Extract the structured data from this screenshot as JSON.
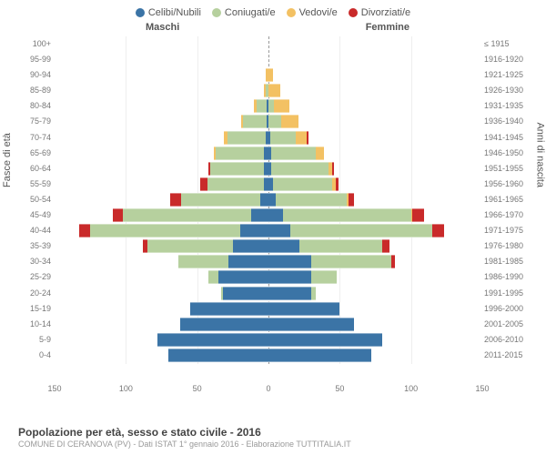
{
  "title": "Popolazione per età, sesso e stato civile - 2016",
  "subtitle": "COMUNE DI CERANOVA (PV) - Dati ISTAT 1° gennaio 2016 - Elaborazione TUTTITALIA.IT",
  "left_axis_label": "Fasce di età",
  "right_axis_label": "Anni di nascita",
  "header_left": "Maschi",
  "header_right": "Femmine",
  "legend": [
    {
      "label": "Celibi/Nubili",
      "color": "#3b74a6"
    },
    {
      "label": "Coniugati/e",
      "color": "#b6d09e"
    },
    {
      "label": "Vedovi/e",
      "color": "#f3c163"
    },
    {
      "label": "Divorziati/e",
      "color": "#c92a2a"
    }
  ],
  "colors": {
    "single": "#3b74a6",
    "married": "#b6d09e",
    "widowed": "#f3c163",
    "divorced": "#c92a2a",
    "grid": "#eee",
    "center": "#999"
  },
  "xmax": 150,
  "xticks": [
    150,
    100,
    50,
    0,
    50,
    100,
    150
  ],
  "age_bands": [
    {
      "age": "100+",
      "year": "≤ 1915",
      "m": [
        0,
        0,
        0,
        0
      ],
      "f": [
        0,
        0,
        0,
        0
      ]
    },
    {
      "age": "95-99",
      "year": "1916-1920",
      "m": [
        0,
        0,
        0,
        0
      ],
      "f": [
        0,
        0,
        0,
        0
      ]
    },
    {
      "age": "90-94",
      "year": "1921-1925",
      "m": [
        0,
        0,
        2,
        0
      ],
      "f": [
        0,
        0,
        3,
        0
      ]
    },
    {
      "age": "85-89",
      "year": "1926-1930",
      "m": [
        0,
        2,
        1,
        0
      ],
      "f": [
        0,
        0,
        8,
        0
      ]
    },
    {
      "age": "80-84",
      "year": "1931-1935",
      "m": [
        1,
        7,
        2,
        0
      ],
      "f": [
        0,
        4,
        11,
        0
      ]
    },
    {
      "age": "75-79",
      "year": "1936-1940",
      "m": [
        1,
        17,
        1,
        0
      ],
      "f": [
        0,
        9,
        12,
        0
      ]
    },
    {
      "age": "70-74",
      "year": "1941-1945",
      "m": [
        2,
        27,
        2,
        0
      ],
      "f": [
        1,
        18,
        8,
        1
      ]
    },
    {
      "age": "65-69",
      "year": "1946-1950",
      "m": [
        3,
        34,
        1,
        0
      ],
      "f": [
        2,
        31,
        6,
        0
      ]
    },
    {
      "age": "60-64",
      "year": "1951-1955",
      "m": [
        3,
        38,
        0,
        1
      ],
      "f": [
        2,
        40,
        3,
        1
      ]
    },
    {
      "age": "55-59",
      "year": "1956-1960",
      "m": [
        3,
        40,
        0,
        5
      ],
      "f": [
        3,
        42,
        2,
        2
      ]
    },
    {
      "age": "50-54",
      "year": "1961-1965",
      "m": [
        6,
        55,
        0,
        8
      ],
      "f": [
        5,
        50,
        1,
        4
      ]
    },
    {
      "age": "45-49",
      "year": "1966-1970",
      "m": [
        12,
        90,
        0,
        7
      ],
      "f": [
        10,
        90,
        1,
        8
      ]
    },
    {
      "age": "40-44",
      "year": "1971-1975",
      "m": [
        20,
        105,
        0,
        8
      ],
      "f": [
        15,
        100,
        0,
        8
      ]
    },
    {
      "age": "35-39",
      "year": "1976-1980",
      "m": [
        25,
        60,
        0,
        3
      ],
      "f": [
        22,
        58,
        0,
        5
      ]
    },
    {
      "age": "30-34",
      "year": "1981-1985",
      "m": [
        28,
        35,
        0,
        0
      ],
      "f": [
        30,
        56,
        0,
        3
      ]
    },
    {
      "age": "25-29",
      "year": "1986-1990",
      "m": [
        35,
        7,
        0,
        0
      ],
      "f": [
        30,
        18,
        0,
        0
      ]
    },
    {
      "age": "20-24",
      "year": "1991-1995",
      "m": [
        32,
        1,
        0,
        0
      ],
      "f": [
        30,
        3,
        0,
        0
      ]
    },
    {
      "age": "15-19",
      "year": "1996-2000",
      "m": [
        55,
        0,
        0,
        0
      ],
      "f": [
        50,
        0,
        0,
        0
      ]
    },
    {
      "age": "10-14",
      "year": "2001-2005",
      "m": [
        62,
        0,
        0,
        0
      ],
      "f": [
        60,
        0,
        0,
        0
      ]
    },
    {
      "age": "5-9",
      "year": "2006-2010",
      "m": [
        78,
        0,
        0,
        0
      ],
      "f": [
        80,
        0,
        0,
        0
      ]
    },
    {
      "age": "0-4",
      "year": "2011-2015",
      "m": [
        70,
        0,
        0,
        0
      ],
      "f": [
        72,
        0,
        0,
        0
      ]
    }
  ]
}
